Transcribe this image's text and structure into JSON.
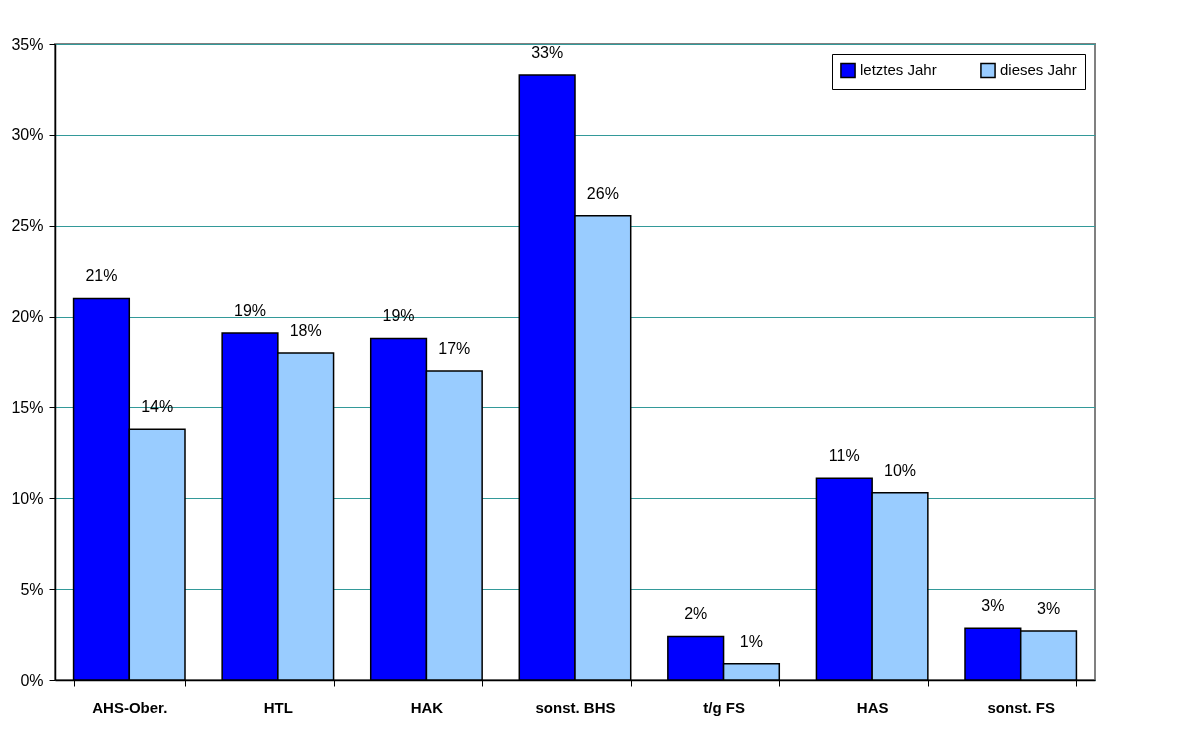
{
  "chart_data": {
    "type": "bar",
    "categories": [
      "AHS-Ober.",
      "HTL",
      "HAK",
      "sonst. BHS",
      "t/g FS",
      "HAS",
      "sonst. FS"
    ],
    "series": [
      {
        "name": "letztes Jahr",
        "color": "#0000ff",
        "values": [
          21.0,
          19.1,
          18.8,
          33.3,
          2.4,
          11.1,
          2.85
        ],
        "value_labels": [
          "21%",
          "19%",
          "19%",
          "33%",
          "2%",
          "11%",
          "3%"
        ]
      },
      {
        "name": "dieses Jahr",
        "color": "#99ccff",
        "values": [
          13.8,
          18.0,
          17.0,
          25.55,
          0.9,
          10.3,
          2.7
        ],
        "value_labels": [
          "14%",
          "18%",
          "17%",
          "26%",
          "1%",
          "10%",
          "3%"
        ]
      }
    ],
    "ylim": [
      0,
      35
    ],
    "yticks": [
      {
        "value": 0,
        "label": "0%"
      },
      {
        "value": 5,
        "label": "5%"
      },
      {
        "value": 10,
        "label": "10%"
      },
      {
        "value": 15,
        "label": "15%"
      },
      {
        "value": 20,
        "label": "20%"
      },
      {
        "value": 25,
        "label": "25%"
      },
      {
        "value": 30,
        "label": "30%"
      },
      {
        "value": 35,
        "label": "35%"
      }
    ],
    "grid": "y",
    "legend": "top right"
  }
}
